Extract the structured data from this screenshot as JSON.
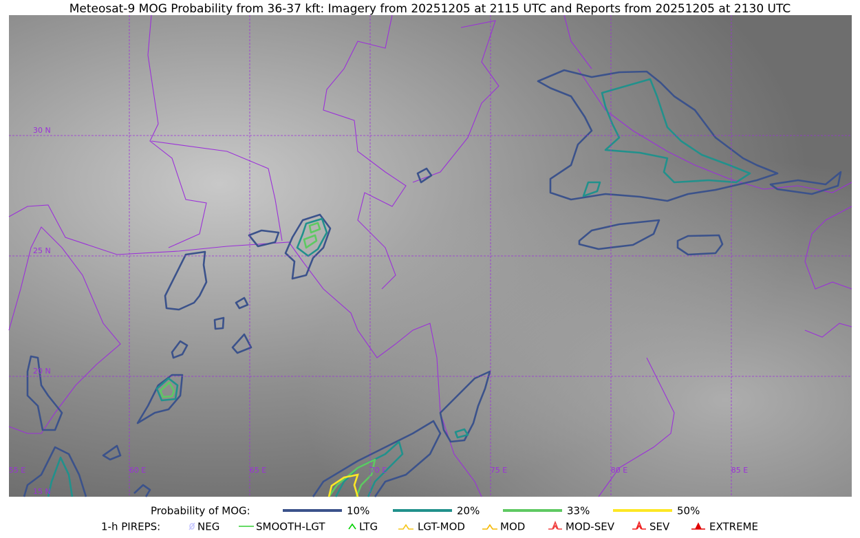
{
  "title": "Meteosat-9 MOG Probability from 36-37 kft: Imagery from 20251205 at 2115 UTC and Reports from 20251205 at 2130 UTC",
  "map": {
    "lat_labels": [
      "30 N",
      "25 N",
      "20 N",
      "15 N"
    ],
    "lon_labels": [
      "55 E",
      "60 E",
      "65 E",
      "70 E",
      "75 E",
      "80 E",
      "85 E"
    ]
  },
  "legend": {
    "probability": {
      "label": "Probability of MOG:",
      "items": [
        {
          "label": "10%",
          "color": "#3b528b"
        },
        {
          "label": "20%",
          "color": "#21918c"
        },
        {
          "label": "33%",
          "color": "#5ec962"
        },
        {
          "label": "50%",
          "color": "#fde725"
        }
      ]
    },
    "pireps": {
      "label": "1-h PIREPS:",
      "items": [
        {
          "label": "NEG",
          "color": "#c8c8ff"
        },
        {
          "label": "SMOOTH-LGT",
          "color": "#32cd32"
        },
        {
          "label": "LTG",
          "color": "#00d000"
        },
        {
          "label": "LGT-MOD",
          "color": "#f5c518"
        },
        {
          "label": "MOD",
          "color": "#f5b800"
        },
        {
          "label": "MOD-SEV",
          "color": "#f04040"
        },
        {
          "label": "SEV",
          "color": "#f02020"
        },
        {
          "label": "EXTREME",
          "color": "#e00000"
        }
      ]
    }
  }
}
